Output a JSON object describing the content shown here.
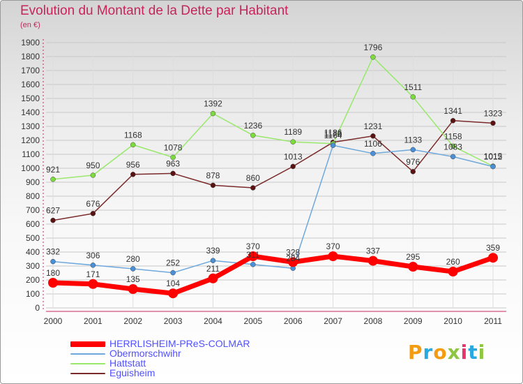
{
  "title": "Evolution du Montant de la Dette par Habitant",
  "subtitle": "(en €)",
  "logo_text": "Proxiti",
  "logo_colors": [
    "#f39c12",
    "#27a9e1",
    "#f39c12",
    "#8dc63f",
    "#e8336d",
    "#27a9e1",
    "#8dc63f"
  ],
  "chart_data": {
    "type": "line",
    "x": [
      "2000",
      "2001",
      "2002",
      "2003",
      "2004",
      "2005",
      "2006",
      "2007",
      "2008",
      "2009",
      "2010",
      "2011"
    ],
    "ylim": [
      0,
      1900
    ],
    "yticks": [
      0,
      100,
      200,
      300,
      400,
      500,
      600,
      700,
      800,
      900,
      1000,
      1100,
      1200,
      1300,
      1400,
      1500,
      1600,
      1700,
      1800,
      1900
    ],
    "grid": true,
    "legend_position": "bottom-left",
    "series": [
      {
        "name": "HERRLISHEIM-PReS-COLMAR",
        "color": "#ff0000",
        "label_color": "#5050ff",
        "marker": "#ff0000",
        "values": [
          180,
          171,
          135,
          104,
          211,
          370,
          328,
          370,
          337,
          295,
          260,
          359
        ]
      },
      {
        "name": "Obermorschwihr",
        "color": "#6fa9dc",
        "label_color": "#5050ff",
        "marker": "#4a90d9",
        "values": [
          332,
          306,
          280,
          252,
          339,
          311,
          284,
          1164,
          1106,
          1133,
          1083,
          1012
        ]
      },
      {
        "name": "Hattstatt",
        "color": "#99e86c",
        "label_color": "#5050ff",
        "marker": "#7ddc3d",
        "values": [
          921,
          950,
          1168,
          1078,
          1392,
          1236,
          1189,
          1176,
          1796,
          1511,
          1158,
          1015
        ]
      },
      {
        "name": "Eguisheim",
        "color": "#7a2a2a",
        "label_color": "#5050ff",
        "marker": "#5a1212",
        "values": [
          627,
          676,
          956,
          963,
          878,
          860,
          1013,
          1186,
          1231,
          976,
          1341,
          1323
        ]
      }
    ]
  }
}
